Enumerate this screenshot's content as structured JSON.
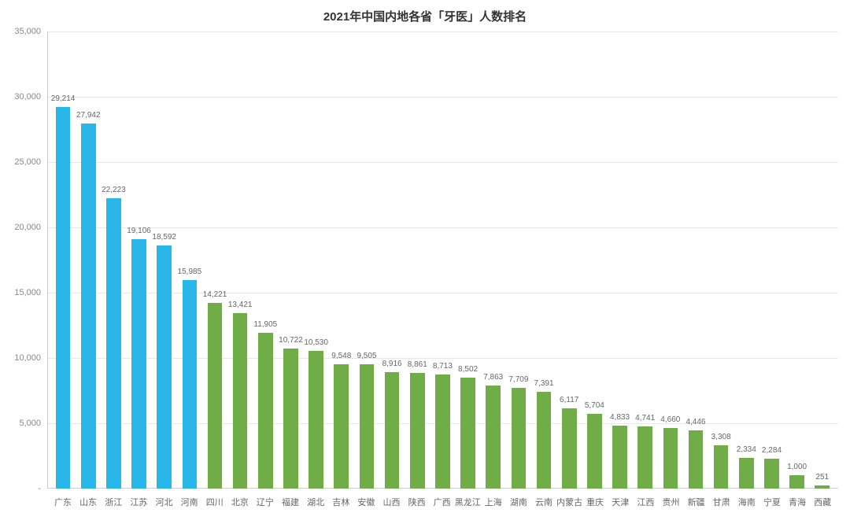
{
  "chart": {
    "type": "bar",
    "title": "2021年中国内地各省「牙医」人数排名",
    "title_fontsize": 15,
    "title_color": "#333333",
    "background_color": "#ffffff",
    "grid_color": "#e8e8e8",
    "axis_color": "#cccccc",
    "label_color": "#666666",
    "tick_color": "#888888",
    "ylim": [
      0,
      35000
    ],
    "ytick_step": 5000,
    "yticks": [
      {
        "v": 0,
        "label": "-"
      },
      {
        "v": 5000,
        "label": "5,000"
      },
      {
        "v": 10000,
        "label": "10,000"
      },
      {
        "v": 15000,
        "label": "15,000"
      },
      {
        "v": 20000,
        "label": "20,000"
      },
      {
        "v": 25000,
        "label": "25,000"
      },
      {
        "v": 30000,
        "label": "30,000"
      },
      {
        "v": 35000,
        "label": "35,000"
      }
    ],
    "bar_width_ratio": 0.58,
    "value_label_fontsize": 10,
    "x_label_fontsize": 11,
    "data": [
      {
        "name": "广东",
        "value": 29214,
        "label": "29,214",
        "color": "#29b6e8"
      },
      {
        "name": "山东",
        "value": 27942,
        "label": "27,942",
        "color": "#29b6e8"
      },
      {
        "name": "浙江",
        "value": 22223,
        "label": "22,223",
        "color": "#29b6e8"
      },
      {
        "name": "江苏",
        "value": 19106,
        "label": "19,106",
        "color": "#29b6e8"
      },
      {
        "name": "河北",
        "value": 18592,
        "label": "18,592",
        "color": "#29b6e8"
      },
      {
        "name": "河南",
        "value": 15985,
        "label": "15,985",
        "color": "#29b6e8"
      },
      {
        "name": "四川",
        "value": 14221,
        "label": "14,221",
        "color": "#70ad47"
      },
      {
        "name": "北京",
        "value": 13421,
        "label": "13,421",
        "color": "#70ad47"
      },
      {
        "name": "辽宁",
        "value": 11905,
        "label": "11,905",
        "color": "#70ad47"
      },
      {
        "name": "福建",
        "value": 10722,
        "label": "10,722",
        "color": "#70ad47"
      },
      {
        "name": "湖北",
        "value": 10530,
        "label": "10,530",
        "color": "#70ad47"
      },
      {
        "name": "吉林",
        "value": 9548,
        "label": "9,548",
        "color": "#70ad47"
      },
      {
        "name": "安徽",
        "value": 9505,
        "label": "9,505",
        "color": "#70ad47"
      },
      {
        "name": "山西",
        "value": 8916,
        "label": "8,916",
        "color": "#70ad47"
      },
      {
        "name": "陕西",
        "value": 8861,
        "label": "8,861",
        "color": "#70ad47"
      },
      {
        "name": "广西",
        "value": 8713,
        "label": "8,713",
        "color": "#70ad47"
      },
      {
        "name": "黑龙江",
        "value": 8502,
        "label": "8,502",
        "color": "#70ad47"
      },
      {
        "name": "上海",
        "value": 7863,
        "label": "7,863",
        "color": "#70ad47"
      },
      {
        "name": "湖南",
        "value": 7709,
        "label": "7,709",
        "color": "#70ad47"
      },
      {
        "name": "云南",
        "value": 7391,
        "label": "7,391",
        "color": "#70ad47"
      },
      {
        "name": "内蒙古",
        "value": 6117,
        "label": "6,117",
        "color": "#70ad47"
      },
      {
        "name": "重庆",
        "value": 5704,
        "label": "5,704",
        "color": "#70ad47"
      },
      {
        "name": "天津",
        "value": 4833,
        "label": "4,833",
        "color": "#70ad47"
      },
      {
        "name": "江西",
        "value": 4741,
        "label": "4,741",
        "color": "#70ad47"
      },
      {
        "name": "贵州",
        "value": 4660,
        "label": "4,660",
        "color": "#70ad47"
      },
      {
        "name": "新疆",
        "value": 4446,
        "label": "4,446",
        "color": "#70ad47"
      },
      {
        "name": "甘肃",
        "value": 3308,
        "label": "3,308",
        "color": "#70ad47"
      },
      {
        "name": "海南",
        "value": 2334,
        "label": "2,334",
        "color": "#70ad47"
      },
      {
        "name": "宁夏",
        "value": 2284,
        "label": "2,284",
        "color": "#70ad47"
      },
      {
        "name": "青海",
        "value": 1000,
        "label": "1,000",
        "color": "#70ad47"
      },
      {
        "name": "西藏",
        "value": 251,
        "label": "251",
        "color": "#70ad47"
      }
    ]
  }
}
